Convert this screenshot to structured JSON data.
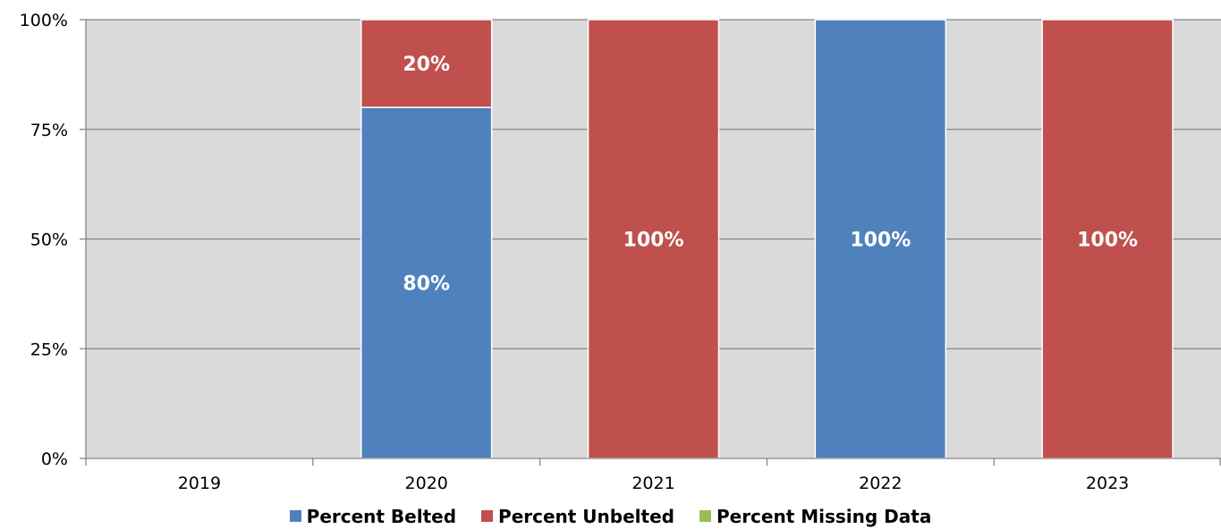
{
  "chart_data": {
    "type": "bar",
    "stacked": true,
    "categories": [
      "2019",
      "2020",
      "2021",
      "2022",
      "2023"
    ],
    "series": [
      {
        "name": "Percent Belted",
        "color": "#4F81BD",
        "values": [
          0,
          80,
          0,
          100,
          0
        ]
      },
      {
        "name": "Percent Unbelted",
        "color": "#C0504D",
        "values": [
          0,
          20,
          100,
          0,
          100
        ]
      },
      {
        "name": "Percent Missing Data",
        "color": "#9BBB59",
        "values": [
          0,
          0,
          0,
          0,
          0
        ]
      }
    ],
    "data_labels": [
      {
        "category": "2020",
        "series": "Percent Belted",
        "text": "80%"
      },
      {
        "category": "2020",
        "series": "Percent Unbelted",
        "text": "20%"
      },
      {
        "category": "2021",
        "series": "Percent Unbelted",
        "text": "100%"
      },
      {
        "category": "2022",
        "series": "Percent Belted",
        "text": "100%"
      },
      {
        "category": "2023",
        "series": "Percent Unbelted",
        "text": "100%"
      }
    ],
    "y_ticks": [
      "0%",
      "25%",
      "50%",
      "75%",
      "100%"
    ],
    "ylim": [
      0,
      100
    ],
    "title": "",
    "xlabel": "",
    "ylabel": "",
    "grid": true,
    "plot_background": "#D9D9D9",
    "legend_position": "bottom"
  }
}
